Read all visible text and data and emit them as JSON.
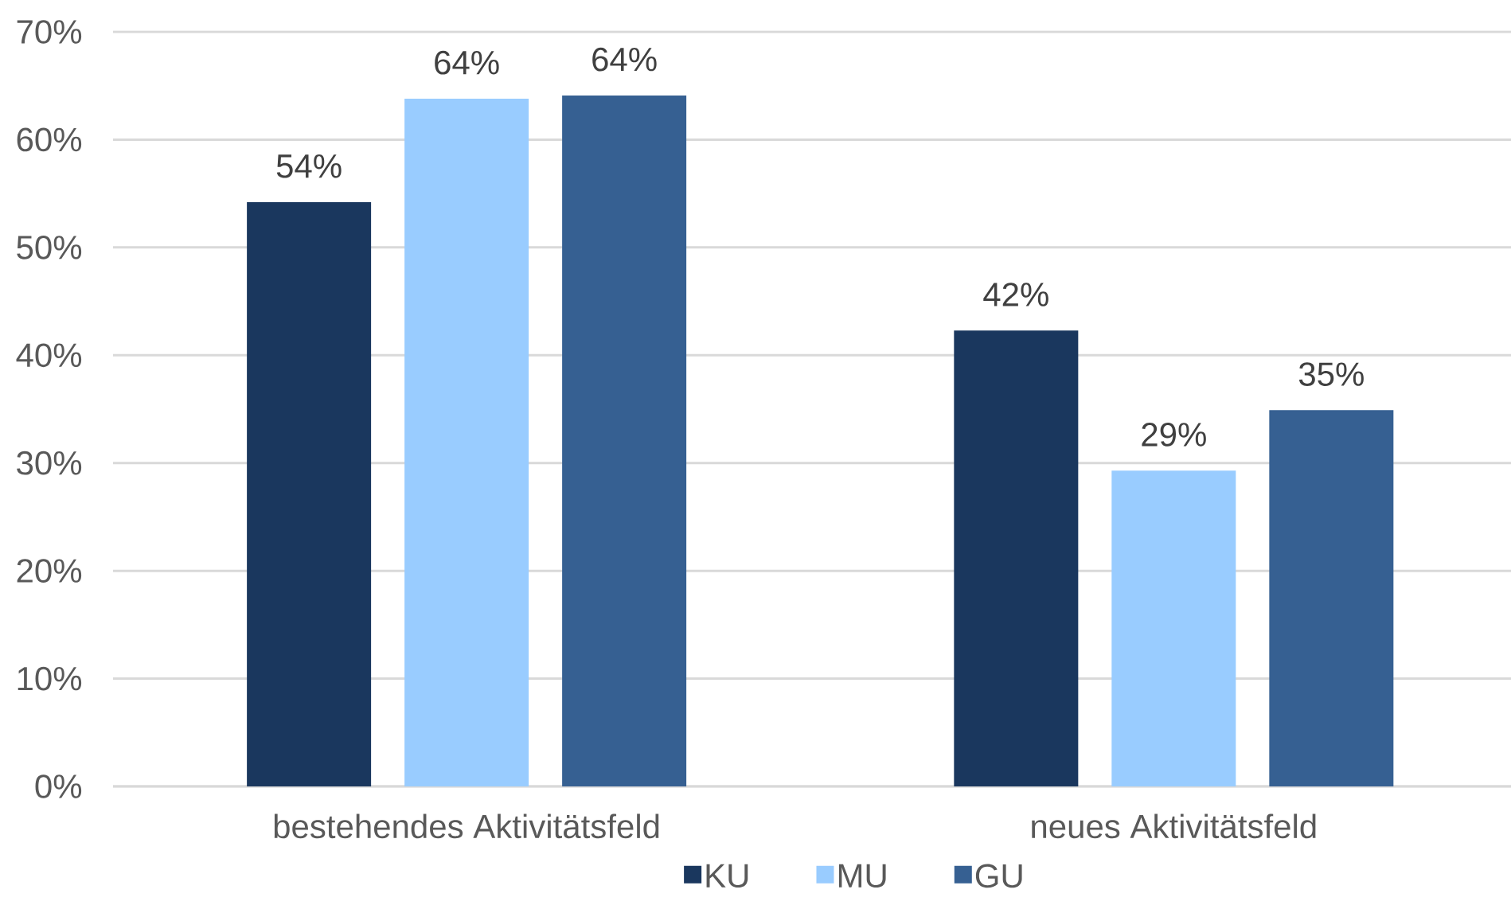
{
  "chart_data": {
    "type": "bar",
    "categories": [
      "bestehendes Aktivitätsfeld",
      "neues Aktivitätsfeld"
    ],
    "series": [
      {
        "name": "KU",
        "color": "#1a375e",
        "values": [
          54.2,
          42.3
        ],
        "value_labels": [
          "54%",
          "42%"
        ]
      },
      {
        "name": "MU",
        "color": "#99ccff",
        "values": [
          63.8,
          29.3
        ],
        "value_labels": [
          "64%",
          "29%"
        ]
      },
      {
        "name": "GU",
        "color": "#366092",
        "values": [
          64.1,
          34.9
        ],
        "value_labels": [
          "64%",
          "35%"
        ]
      }
    ],
    "ylim": [
      0,
      70
    ],
    "yticks": [
      {
        "value": 0,
        "label": "0%"
      },
      {
        "value": 10,
        "label": "10%"
      },
      {
        "value": 20,
        "label": "20%"
      },
      {
        "value": 30,
        "label": "30%"
      },
      {
        "value": 40,
        "label": "40%"
      },
      {
        "value": 50,
        "label": "50%"
      },
      {
        "value": 60,
        "label": "60%"
      },
      {
        "value": 70,
        "label": "70%"
      }
    ],
    "grid": "y",
    "legend": "bottom"
  }
}
